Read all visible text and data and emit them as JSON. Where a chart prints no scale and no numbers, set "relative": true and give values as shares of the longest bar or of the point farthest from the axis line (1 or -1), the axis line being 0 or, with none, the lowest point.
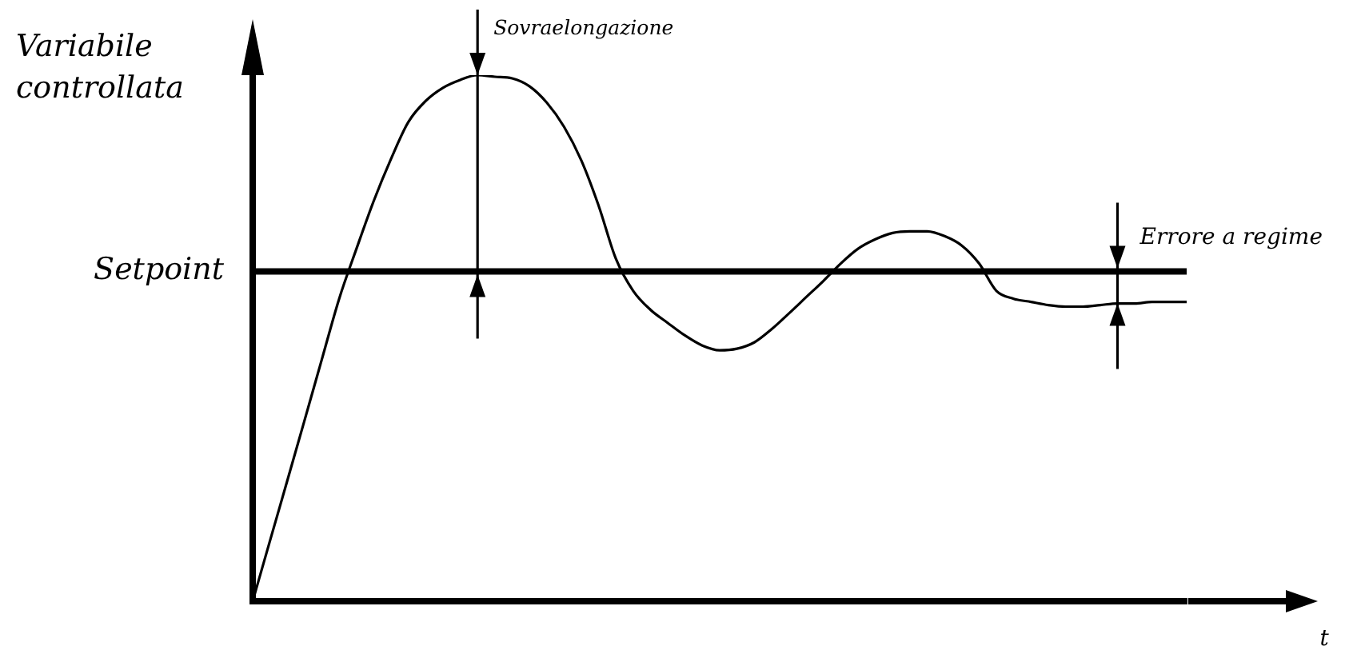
{
  "chart_data": {
    "type": "line",
    "relative": true,
    "ylabel": "Variabile controllata",
    "categories": [
      null,
      null,
      null,
      null,
      null,
      null,
      null,
      null,
      null,
      null,
      null,
      null,
      null,
      null,
      null,
      null,
      null,
      null,
      null,
      null,
      null,
      null,
      null,
      null,
      null,
      null,
      null,
      null,
      null,
      null,
      null,
      null,
      null,
      null,
      null,
      null,
      null,
      null,
      null,
      null,
      null,
      null,
      null,
      null,
      null,
      null,
      null,
      null,
      null,
      null,
      null,
      null,
      null,
      null,
      null
    ],
    "values": [
      0,
      0.115,
      0.229,
      0.344,
      0.46,
      0.575,
      0.67,
      0.761,
      0.841,
      0.911,
      0.951,
      0.976,
      0.991,
      1,
      0.997,
      0.994,
      0.979,
      0.948,
      0.902,
      0.838,
      0.752,
      0.651,
      0.59,
      0.554,
      0.529,
      0.505,
      0.486,
      0.477,
      0.48,
      0.492,
      0.517,
      0.547,
      0.578,
      0.609,
      0.642,
      0.67,
      0.688,
      0.7,
      0.703,
      0.703,
      0.694,
      0.676,
      0.642,
      0.59,
      0.575,
      0.569,
      0.563,
      0.56,
      0.56,
      0.563,
      0.566,
      0.566,
      0.569,
      0.569,
      0.569
    ],
    "color": "#000000",
    "marker": "none",
    "ref_lines": [
      {
        "axis": "y",
        "value": 0.627,
        "label": "Setpoint",
        "color": "#000000"
      }
    ],
    "annotations": [
      "Sovraelongazione",
      "Errore a regime",
      "t"
    ]
  }
}
